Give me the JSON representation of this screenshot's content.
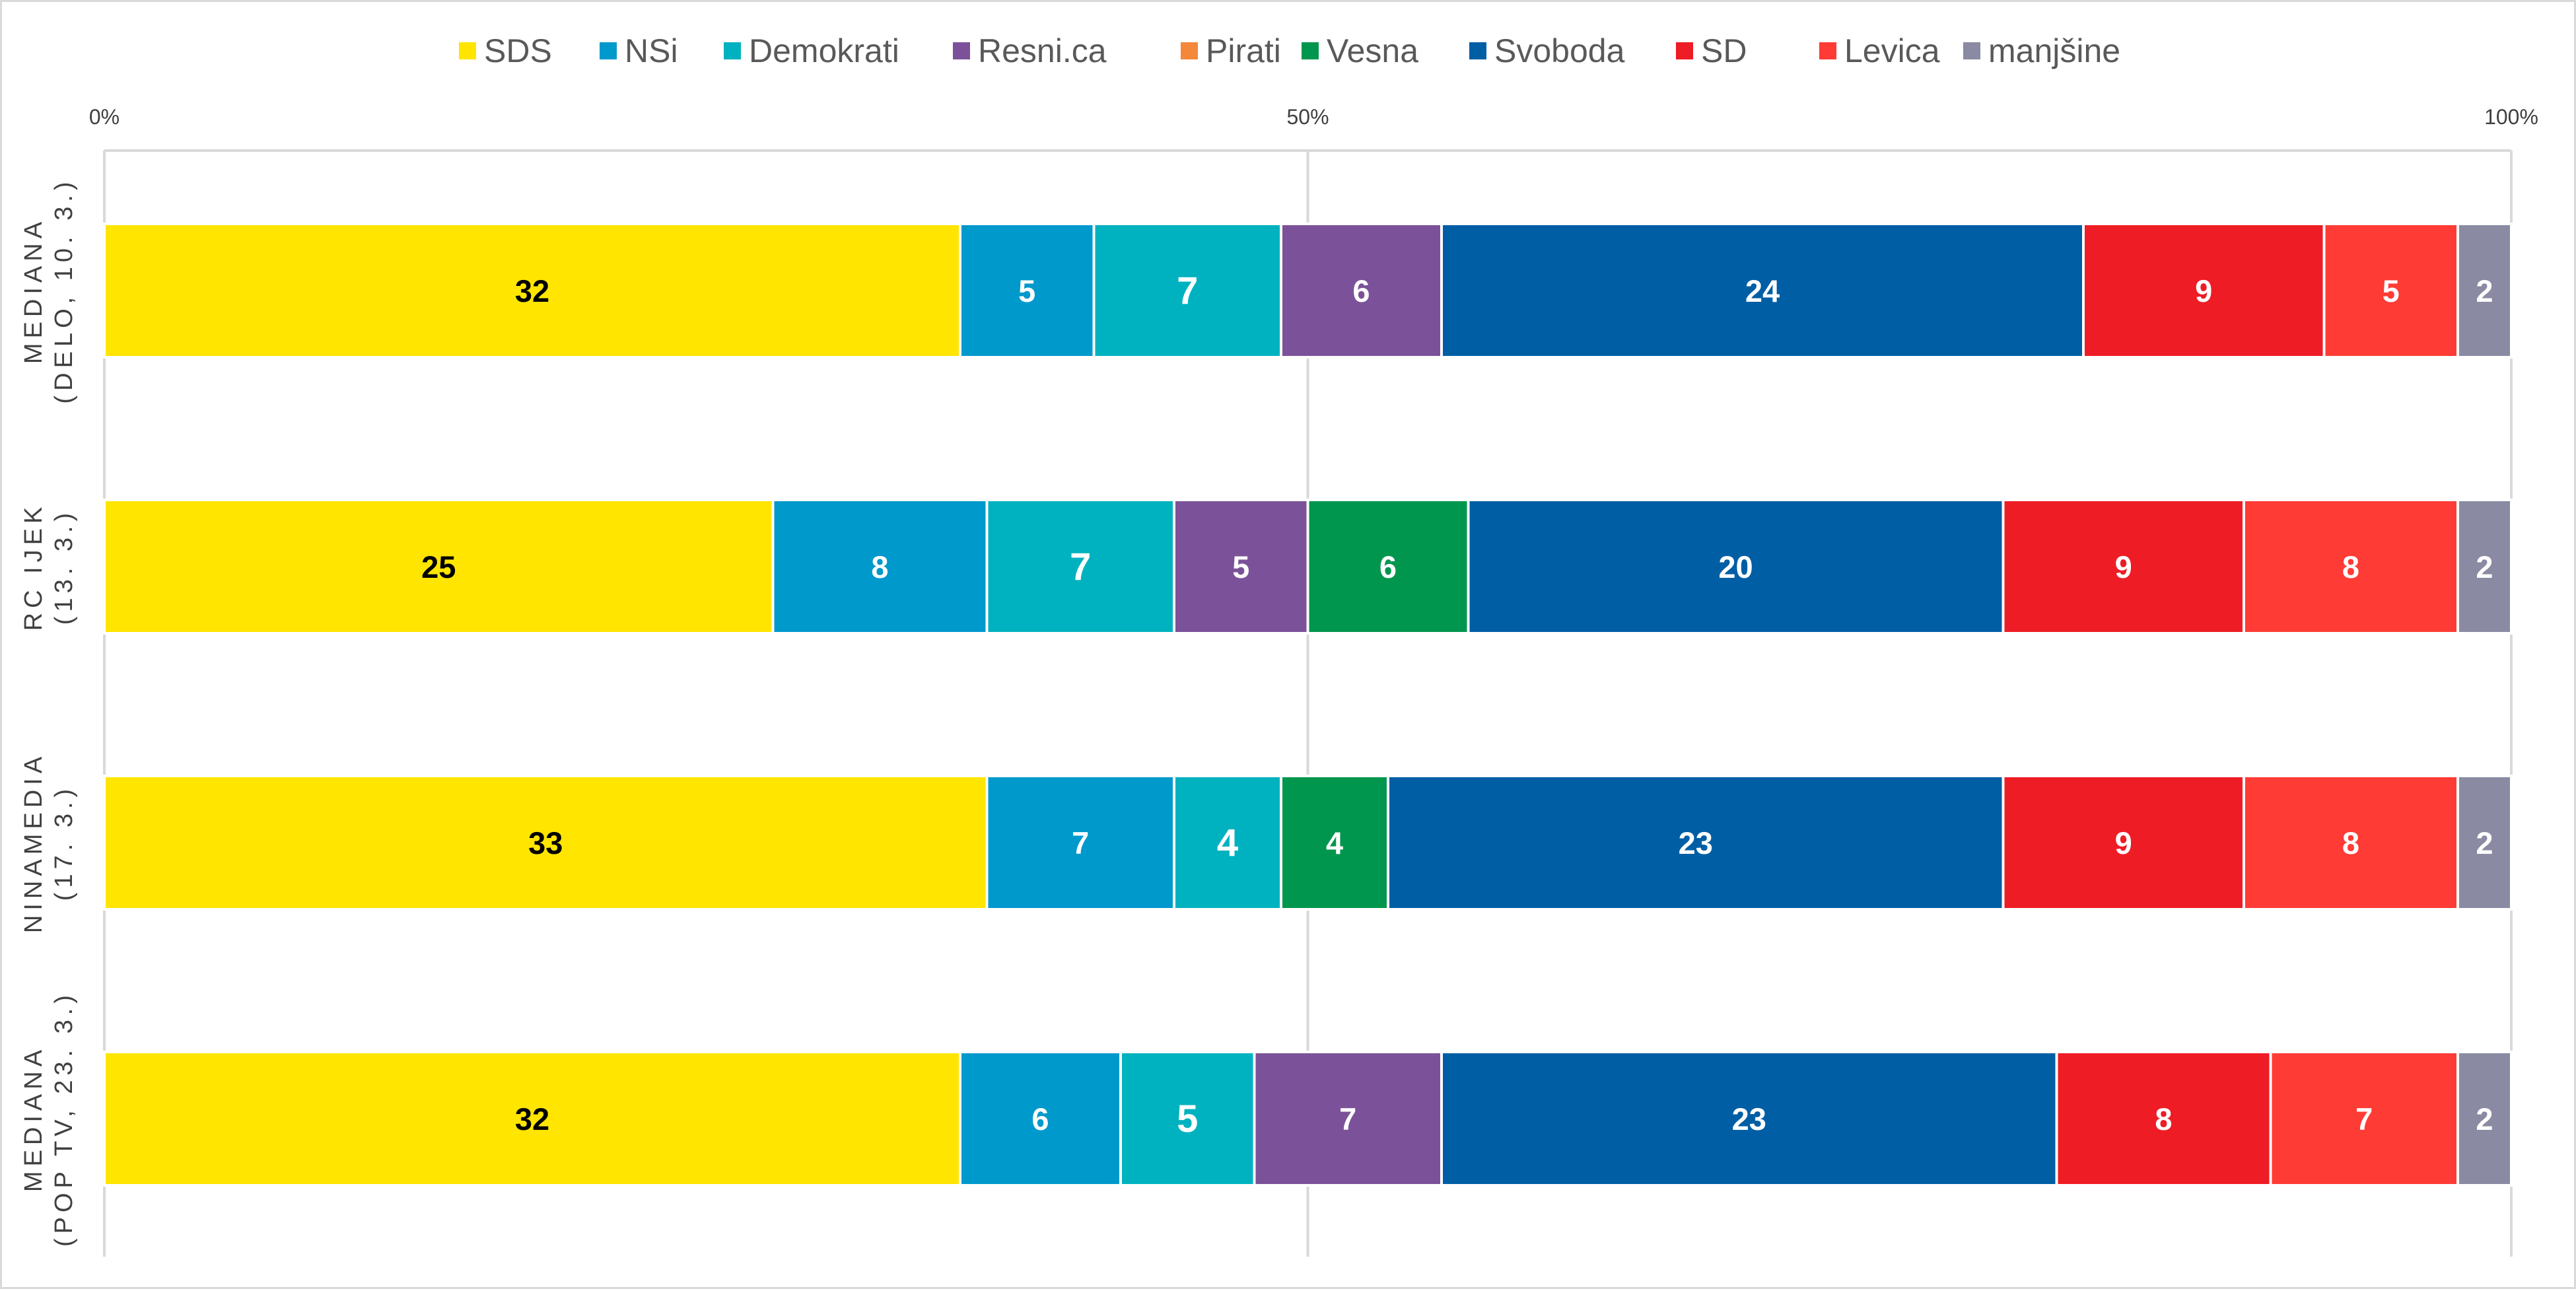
{
  "chart_data": {
    "type": "bar",
    "stacked": "100%",
    "orientation": "horizontal",
    "title": "",
    "xlabel": "",
    "ylabel": "",
    "xlim": [
      0,
      100
    ],
    "x_ticks": [
      "0%",
      "50%",
      "100%"
    ],
    "grid": true,
    "legend_position": "top",
    "categories": [
      [
        "MEDIANA",
        "(DELO, 10. 3.)"
      ],
      [
        "RC IJEK",
        "(13. 3.)"
      ],
      [
        "NINAMEDIA",
        "(17. 3.)"
      ],
      [
        "MEDIANA",
        "(POP TV, 23. 3.)"
      ]
    ],
    "series": [
      {
        "name": "SDS",
        "color": "#FFE500",
        "label_color": "#000000",
        "values": [
          32,
          25,
          33,
          32
        ]
      },
      {
        "name": "NSi",
        "color": "#0099CC",
        "label_color": "#FFFFFF",
        "values": [
          5,
          8,
          7,
          6
        ]
      },
      {
        "name": "Demokrati",
        "color": "#00B2BF",
        "label_color": "#FFFFFF",
        "values": [
          7,
          7,
          4,
          5
        ]
      },
      {
        "name": "Resni.ca",
        "color": "#7B5299",
        "label_color": "#FFFFFF",
        "values": [
          6,
          5,
          0,
          7
        ]
      },
      {
        "name": "Pirati",
        "color": "#F4883A",
        "label_color": "#FFFFFF",
        "values": [
          0,
          0,
          0,
          0
        ]
      },
      {
        "name": "Vesna",
        "color": "#00964E",
        "label_color": "#FFFFFF",
        "values": [
          0,
          6,
          4,
          0
        ]
      },
      {
        "name": "Svoboda",
        "color": "#005EA5",
        "label_color": "#FFFFFF",
        "values": [
          24,
          20,
          23,
          23
        ]
      },
      {
        "name": "SD",
        "color": "#EE1C25",
        "label_color": "#FFFFFF",
        "values": [
          9,
          9,
          9,
          8
        ]
      },
      {
        "name": "Levica",
        "color": "#FF3B35",
        "label_color": "#FFFFFF",
        "values": [
          5,
          8,
          8,
          7
        ]
      },
      {
        "name": "manjšine",
        "color": "#8A8AA3",
        "label_color": "#FFFFFF",
        "values": [
          2,
          2,
          2,
          2
        ]
      }
    ],
    "big_label_series": [
      "Demokrati"
    ],
    "colors": {
      "grid": "#d9d9d9",
      "separator": "#ffffff",
      "tick_text": "#404040",
      "legend_text": "#595959"
    }
  }
}
